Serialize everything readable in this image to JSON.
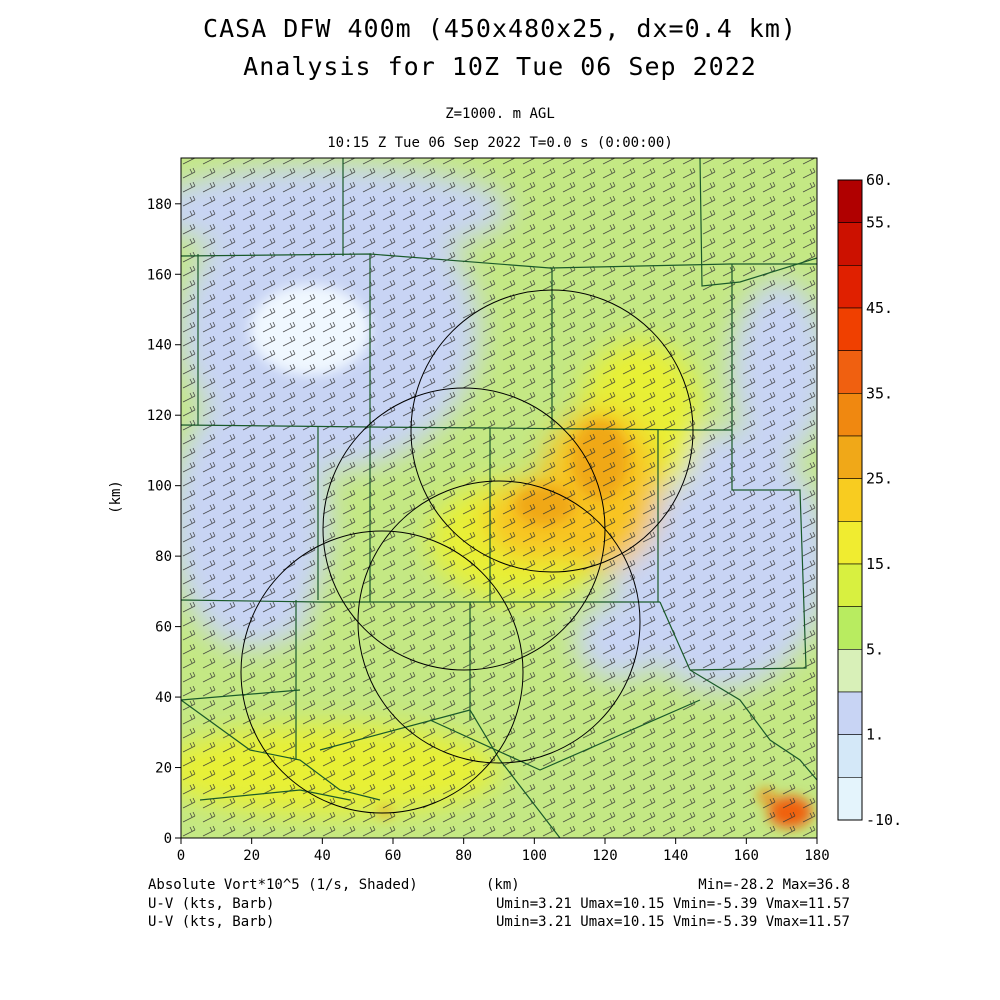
{
  "title": {
    "line1": "CASA DFW 400m (450x480x25, dx=0.4 km)",
    "line2": "Analysis for 10Z Tue 06 Sep 2022"
  },
  "subtitle": {
    "level": "Z=1000. m AGL",
    "time": "10:15 Z Tue 06 Sep 2022    T=0.0 s (0:00:00)"
  },
  "map": {
    "x_range_km": [
      0,
      180
    ],
    "y_range_km": [
      0,
      193
    ],
    "x_ticks": [
      0,
      20,
      40,
      60,
      80,
      100,
      120,
      140,
      160,
      180
    ],
    "y_ticks": [
      0,
      20,
      40,
      60,
      80,
      100,
      120,
      140,
      160,
      180
    ],
    "y_label": "(km)",
    "x_label": "(km)",
    "radar_circles_km": [
      {
        "cx": 105,
        "cy": 117,
        "r": 40
      },
      {
        "cx": 80,
        "cy": 90,
        "r": 40
      },
      {
        "cx": 90,
        "cy": 64,
        "r": 40
      },
      {
        "cx": 57,
        "cy": 47,
        "r": 40
      }
    ]
  },
  "colorbar": {
    "labels": [
      "60.",
      "55.",
      "45.",
      "35.",
      "25.",
      "15.",
      "5.",
      "1.",
      "-10."
    ],
    "colors": [
      "#b00000",
      "#cc1100",
      "#e02000",
      "#f04000",
      "#f06010",
      "#f08810",
      "#f0a818",
      "#f8cc20",
      "#f0ec30",
      "#d8f040",
      "#b8ec60",
      "#d8f0b8",
      "#c8d4f4",
      "#d4e8f8",
      "#e4f4fc"
    ]
  },
  "footer": {
    "field1": "Absolute Vort*10^5 (1/s, Shaded)",
    "field2": "U-V (kts, Barb)",
    "field3": "U-V (kts, Barb)",
    "xunit": "(km)",
    "minmax": "Min=-28.2 Max=36.8",
    "uv1": "Umin=3.21 Umax=10.15 Vmin=-5.39 Vmax=11.57",
    "uv2": "Umin=3.21 Umax=10.15 Vmin=-5.39 Vmax=11.57"
  }
}
